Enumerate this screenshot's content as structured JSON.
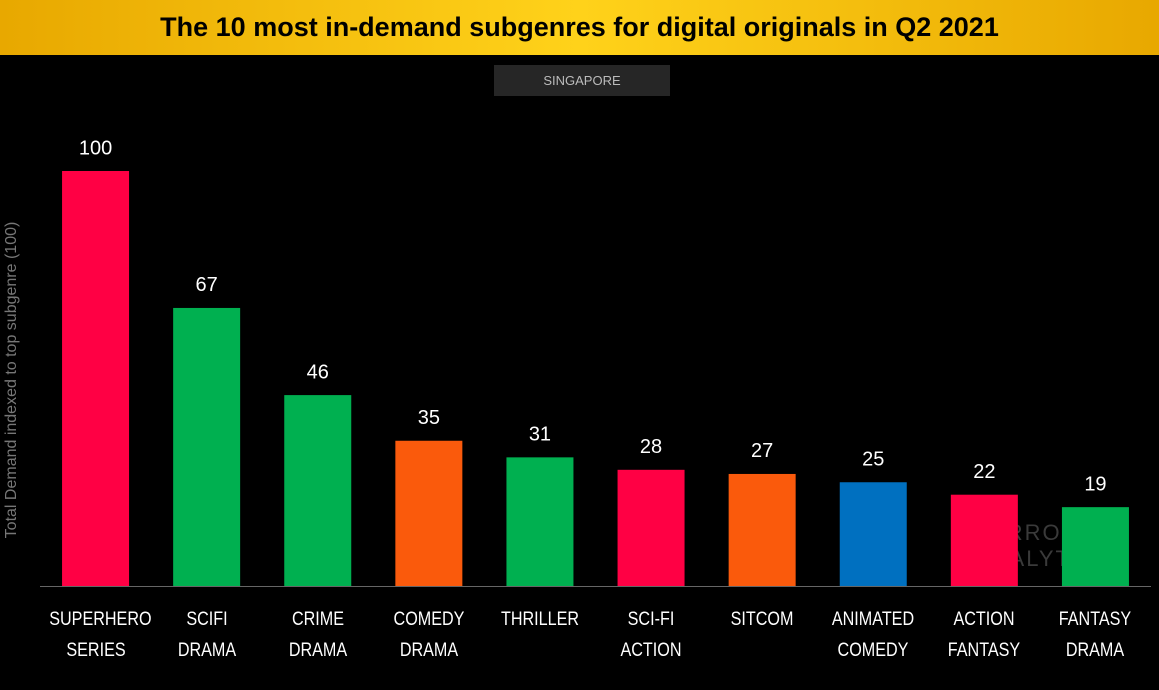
{
  "chart_data": {
    "type": "bar",
    "title": "The 10 most in-demand subgenres for digital originals in Q2 2021",
    "subtitle": "SINGAPORE",
    "y_label": "Total Demand indexed to top subgenre (100)",
    "watermark": "PARROT ANALYTICS",
    "categories": [
      "SUPERHERO\nSERIES",
      "SCIFI DRAMA",
      "CRIME DRAMA",
      "COMEDY\nDRAMA",
      "THRILLER",
      "SCI-FI ACTION",
      "SITCOM",
      "ANIMATED\nCOMEDY",
      "ACTION\nFANTASY",
      "FANTASY\nDRAMA"
    ],
    "values": [
      100,
      67,
      46,
      35,
      31,
      28,
      27,
      25,
      22,
      19
    ],
    "colors": [
      "#ff0044",
      "#00b050",
      "#00b050",
      "#fa5a0c",
      "#00b050",
      "#ff0044",
      "#fa5a0c",
      "#0070c0",
      "#ff0044",
      "#00b050"
    ],
    "ylim": [
      0,
      100
    ]
  }
}
